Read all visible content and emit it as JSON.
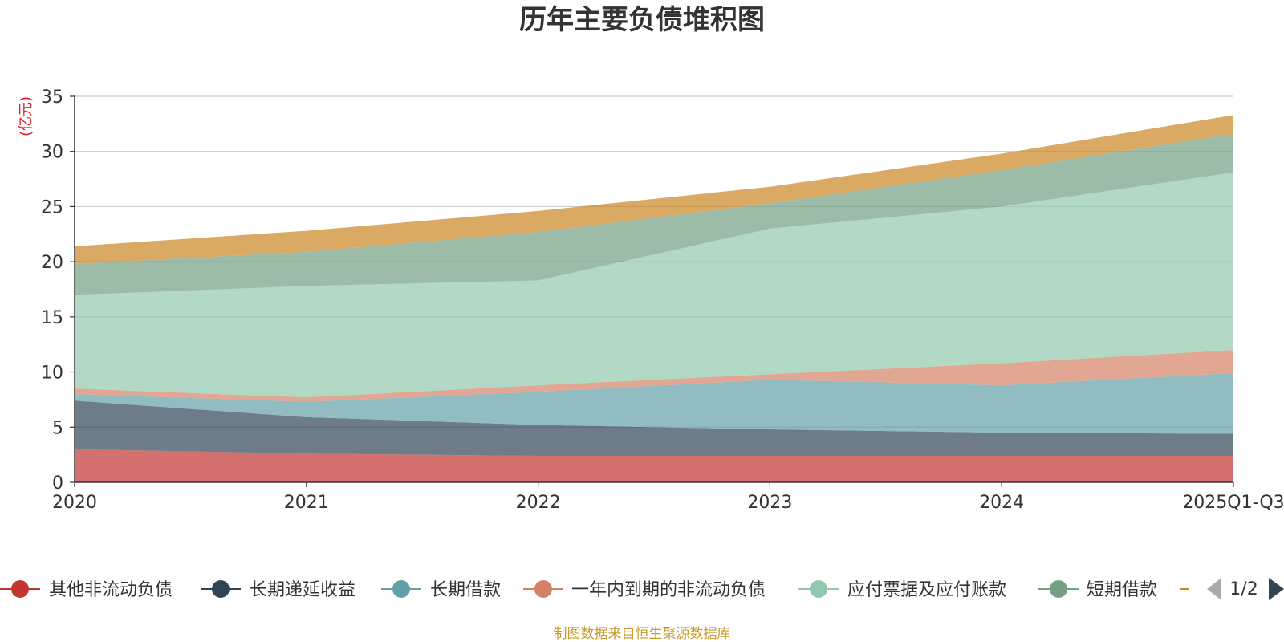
{
  "chart_data": {
    "type": "area",
    "stacked": true,
    "title": "历年主要负债堆积图",
    "unit_label": "(亿元)",
    "categories": [
      "2020",
      "2021",
      "2022",
      "2023",
      "2024",
      "2025Q1-Q3"
    ],
    "ylim": [
      0,
      35
    ],
    "yticks": [
      0,
      5,
      10,
      15,
      20,
      25,
      30,
      35
    ],
    "grid": true,
    "legend_position": "bottom",
    "series": [
      {
        "name": "其他非流动负债",
        "color": "#c23531",
        "values": [
          3.0,
          2.6,
          2.4,
          2.4,
          2.4,
          2.4
        ]
      },
      {
        "name": "长期递延收益",
        "color": "#2f4554",
        "values": [
          4.4,
          3.3,
          2.8,
          2.4,
          2.1,
          2.0
        ]
      },
      {
        "name": "长期借款",
        "color": "#61a0a8",
        "values": [
          0.6,
          1.4,
          3.0,
          4.5,
          4.3,
          5.5
        ]
      },
      {
        "name": "一年内到期的非流动负债",
        "color": "#d48265",
        "values": [
          0.5,
          0.4,
          0.6,
          0.5,
          2.0,
          2.1
        ]
      },
      {
        "name": "应付票据及应付账款",
        "color": "#91c7ae",
        "values": [
          8.5,
          10.1,
          9.5,
          13.2,
          14.2,
          16.1
        ]
      },
      {
        "name": "短期借款",
        "color": "#749f83",
        "values": [
          2.8,
          3.1,
          4.4,
          2.3,
          3.3,
          3.5
        ]
      },
      {
        "name": "",
        "color": "#ca8622",
        "values": [
          1.6,
          1.9,
          1.9,
          1.5,
          1.5,
          1.7
        ]
      }
    ]
  },
  "legend": {
    "page_indicator": "1/2",
    "prev_icon": "triangle-left-icon",
    "next_icon": "triangle-right-icon"
  },
  "footer": {
    "source": "制图数据来自恒生聚源数据库"
  }
}
